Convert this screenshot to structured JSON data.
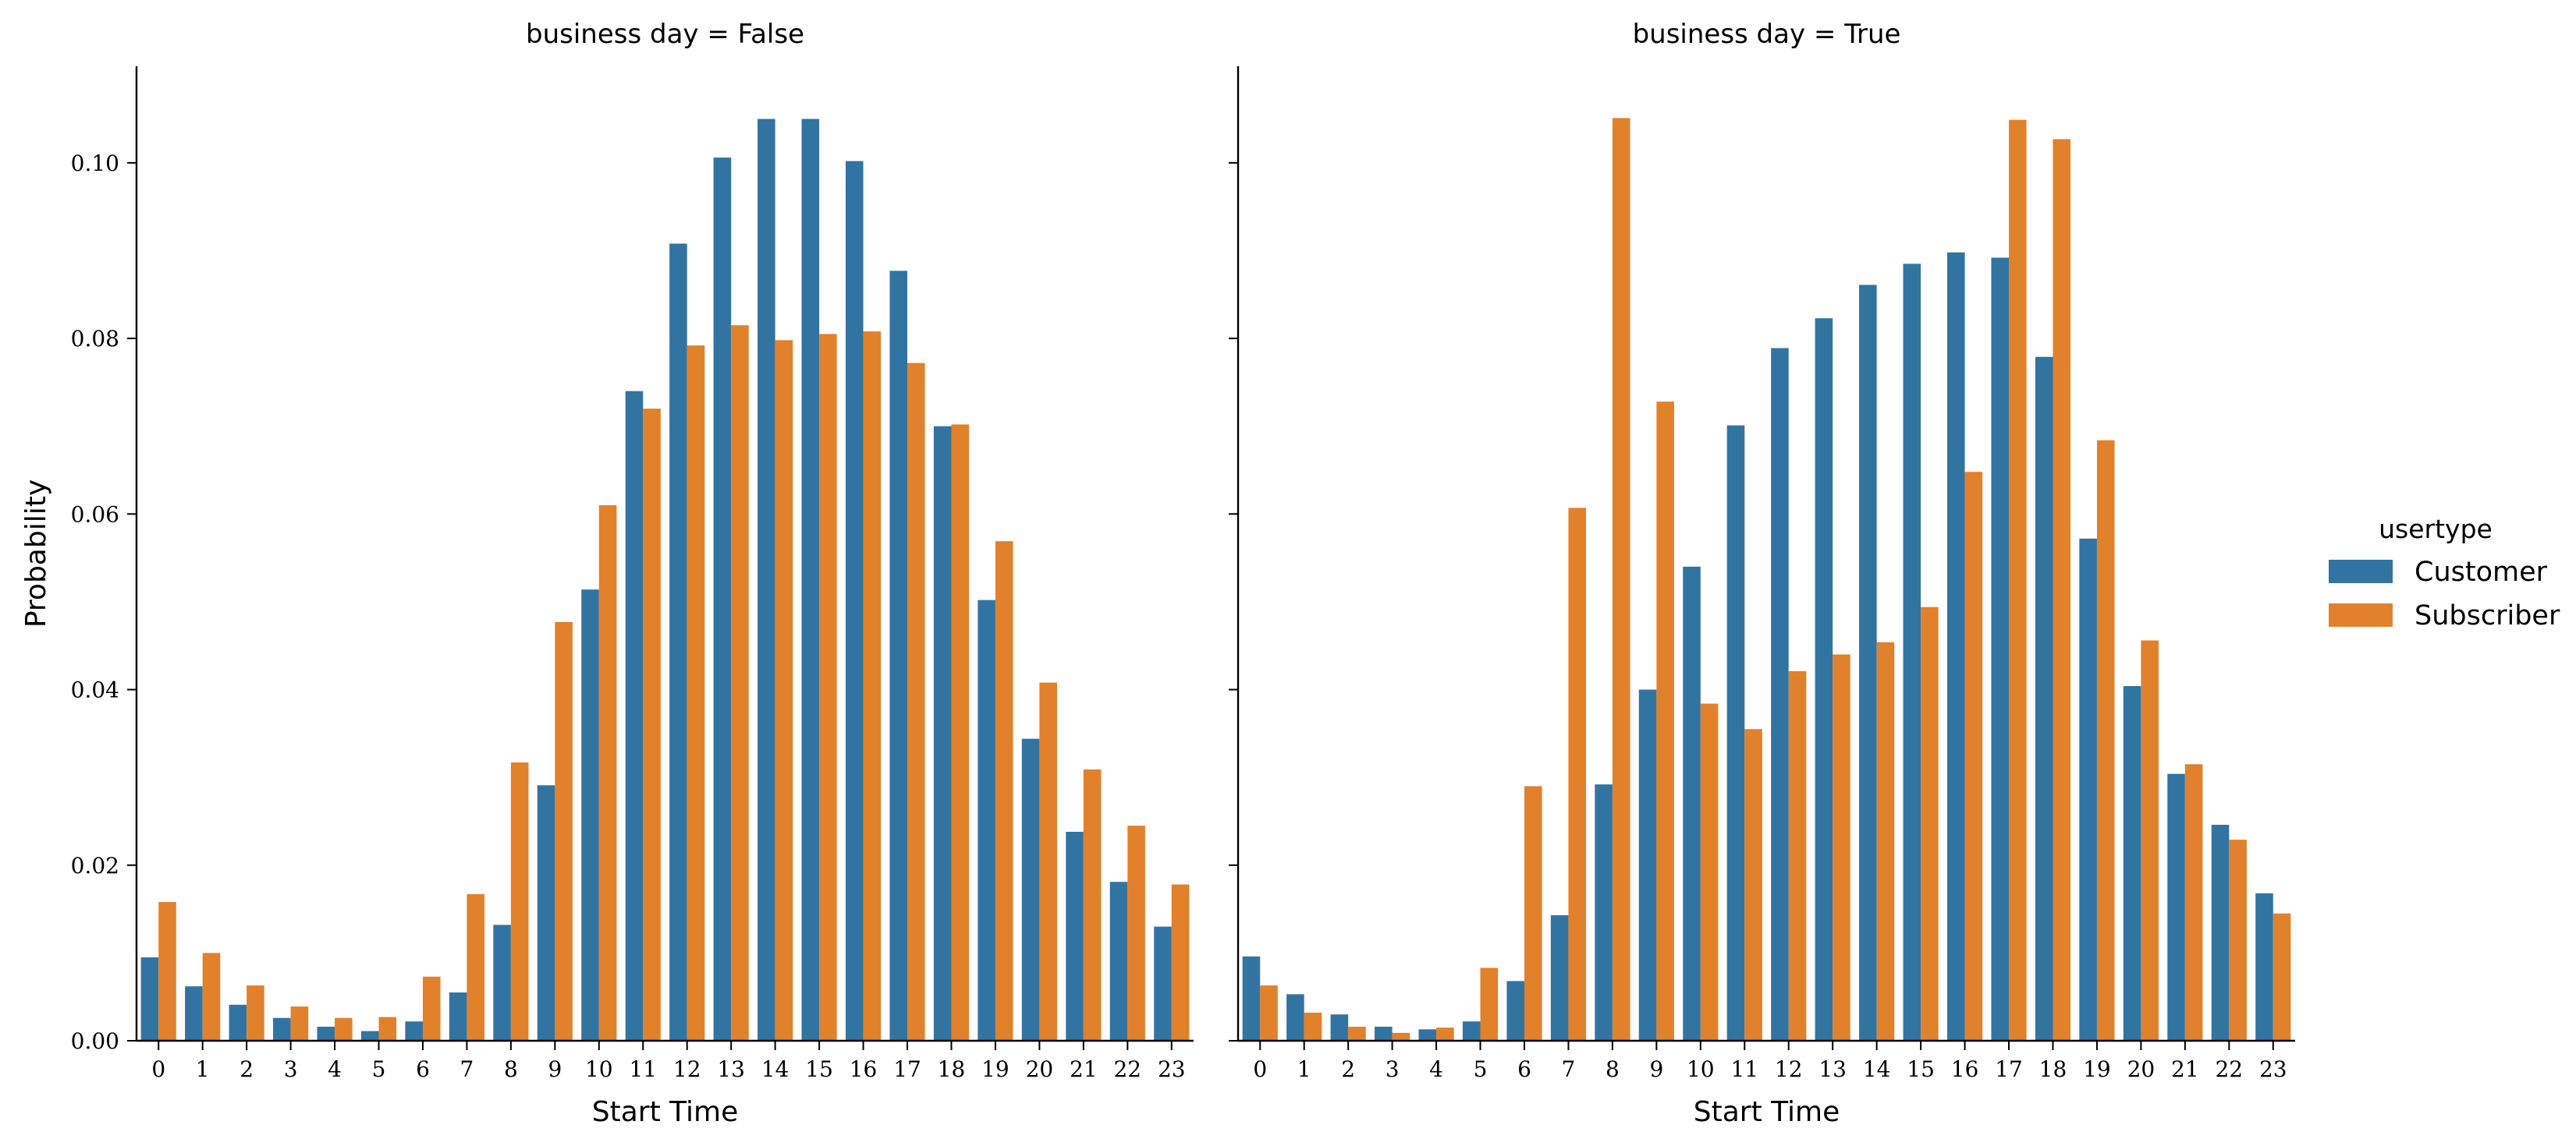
{
  "chart_data": {
    "type": "bar",
    "ylabel": "Probability",
    "xlabel": "Start Time",
    "ylim": [
      0,
      0.111
    ],
    "yticks": [
      "0.00",
      "0.02",
      "0.04",
      "0.06",
      "0.08",
      "0.10"
    ],
    "categories": [
      "0",
      "1",
      "2",
      "3",
      "4",
      "5",
      "6",
      "7",
      "8",
      "9",
      "10",
      "11",
      "12",
      "13",
      "14",
      "15",
      "16",
      "17",
      "18",
      "19",
      "20",
      "21",
      "22",
      "23"
    ],
    "legend": {
      "title": "usertype",
      "placement": "right",
      "entries": [
        "Customer",
        "Subscriber"
      ]
    },
    "colors": {
      "Customer": "#3274a1",
      "Subscriber": "#e1812c"
    },
    "panels": [
      {
        "title": "business day = False",
        "series": [
          {
            "name": "Customer",
            "values": [
              0.0095,
              0.0062,
              0.0041,
              0.0026,
              0.0016,
              0.0011,
              0.0022,
              0.0055,
              0.0132,
              0.0291,
              0.0514,
              0.074,
              0.0908,
              0.1006,
              0.105,
              0.105,
              0.1002,
              0.0877,
              0.07,
              0.0502,
              0.0344,
              0.0238,
              0.0181,
              0.013
            ]
          },
          {
            "name": "Subscriber",
            "values": [
              0.0158,
              0.01,
              0.0063,
              0.0039,
              0.0026,
              0.0027,
              0.0073,
              0.0167,
              0.0317,
              0.0477,
              0.061,
              0.072,
              0.0792,
              0.0815,
              0.0798,
              0.0805,
              0.0808,
              0.0772,
              0.0702,
              0.0569,
              0.0408,
              0.0309,
              0.0245,
              0.0178
            ]
          }
        ]
      },
      {
        "title": "business day = True",
        "series": [
          {
            "name": "Customer",
            "values": [
              0.0096,
              0.0053,
              0.003,
              0.0016,
              0.0013,
              0.0022,
              0.0068,
              0.0143,
              0.0292,
              0.04,
              0.054,
              0.0701,
              0.0789,
              0.0823,
              0.0861,
              0.0885,
              0.0898,
              0.0892,
              0.0779,
              0.0572,
              0.0404,
              0.0304,
              0.0246,
              0.0168
            ]
          },
          {
            "name": "Subscriber",
            "values": [
              0.0063,
              0.0032,
              0.0016,
              0.0009,
              0.0015,
              0.0083,
              0.029,
              0.0607,
              0.1051,
              0.0728,
              0.0384,
              0.0355,
              0.0421,
              0.044,
              0.0454,
              0.0494,
              0.0648,
              0.1049,
              0.1027,
              0.0684,
              0.0456,
              0.0315,
              0.0229,
              0.0145
            ]
          }
        ]
      }
    ]
  }
}
